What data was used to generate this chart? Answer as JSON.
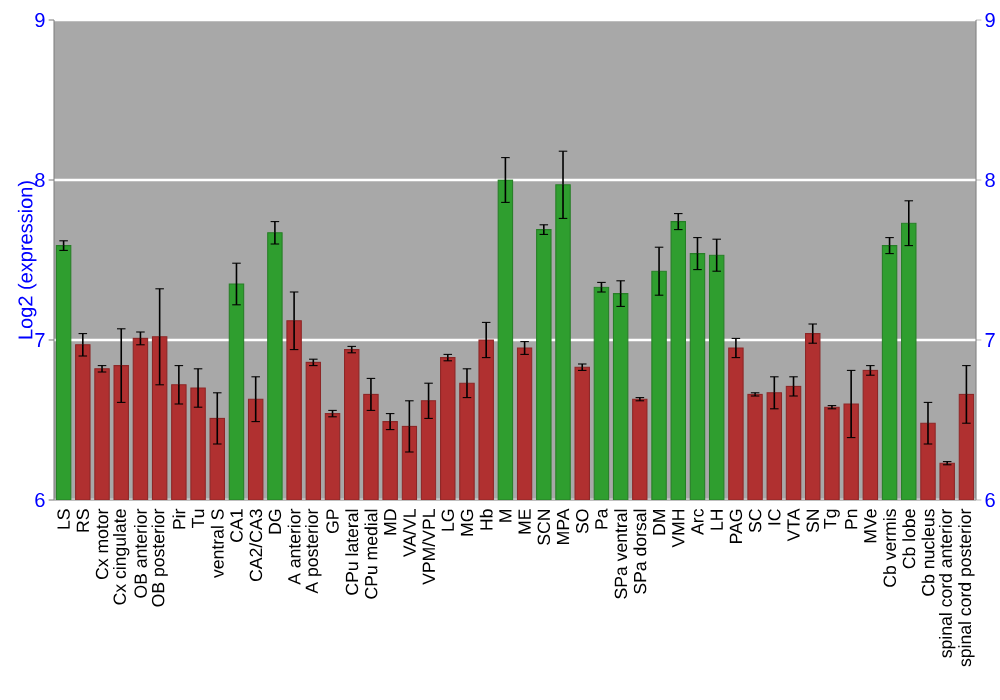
{
  "chart_data": {
    "type": "bar",
    "ylabel": "Log2 (expression)",
    "categories": [
      "LS",
      "RS",
      "Cx motor",
      "Cx cingulate",
      "OB anterior",
      "OB posterior",
      "Pir",
      "Tu",
      "ventral S",
      "CA1",
      "CA2/CA3",
      "DG",
      "A anterior",
      "A posterior",
      "GP",
      "CPu lateral",
      "CPu medial",
      "MD",
      "VA/VL",
      "VPM/VPL",
      "LG",
      "MG",
      "Hb",
      "M",
      "ME",
      "SCN",
      "MPA",
      "SO",
      "Pa",
      "SPa ventral",
      "SPa dorsal",
      "DM",
      "VMH",
      "Arc",
      "LH",
      "PAG",
      "SC",
      "IC",
      "VTA",
      "SN",
      "Tg",
      "Pn",
      "MVe",
      "Cb vermis",
      "Cb lobe",
      "Cb nucleus",
      "spinal cord anterior",
      "spinal cord posterior"
    ],
    "values": [
      7.59,
      6.97,
      6.82,
      6.84,
      7.01,
      7.02,
      6.72,
      6.7,
      6.51,
      7.35,
      6.63,
      7.67,
      7.12,
      6.86,
      6.54,
      6.94,
      6.66,
      6.49,
      6.46,
      6.62,
      6.89,
      6.73,
      7.0,
      8.0,
      6.95,
      7.69,
      7.97,
      6.83,
      7.33,
      7.29,
      6.63,
      7.43,
      7.74,
      7.54,
      7.53,
      6.95,
      6.66,
      6.67,
      6.71,
      7.04,
      6.58,
      6.6,
      6.81,
      7.59,
      7.73,
      6.48,
      6.23,
      6.66
    ],
    "errors": [
      0.03,
      0.07,
      0.02,
      0.23,
      0.04,
      0.3,
      0.12,
      0.12,
      0.16,
      0.13,
      0.14,
      0.07,
      0.18,
      0.02,
      0.02,
      0.02,
      0.1,
      0.05,
      0.16,
      0.11,
      0.02,
      0.09,
      0.11,
      0.14,
      0.04,
      0.03,
      0.21,
      0.02,
      0.03,
      0.08,
      0.01,
      0.15,
      0.05,
      0.1,
      0.1,
      0.06,
      0.01,
      0.1,
      0.06,
      0.06,
      0.01,
      0.21,
      0.03,
      0.05,
      0.14,
      0.13,
      0.01,
      0.18
    ],
    "colors": [
      "#2f9e2f",
      "#b03030",
      "#b03030",
      "#b03030",
      "#b03030",
      "#b03030",
      "#b03030",
      "#b03030",
      "#b03030",
      "#2f9e2f",
      "#b03030",
      "#2f9e2f",
      "#b03030",
      "#b03030",
      "#b03030",
      "#b03030",
      "#b03030",
      "#b03030",
      "#b03030",
      "#b03030",
      "#b03030",
      "#b03030",
      "#b03030",
      "#2f9e2f",
      "#b03030",
      "#2f9e2f",
      "#2f9e2f",
      "#b03030",
      "#2f9e2f",
      "#2f9e2f",
      "#b03030",
      "#2f9e2f",
      "#2f9e2f",
      "#2f9e2f",
      "#2f9e2f",
      "#b03030",
      "#b03030",
      "#b03030",
      "#b03030",
      "#b03030",
      "#b03030",
      "#b03030",
      "#b03030",
      "#2f9e2f",
      "#2f9e2f",
      "#b03030",
      "#b03030",
      "#b03030"
    ],
    "ylim": [
      6,
      9
    ],
    "yticks": [
      6,
      7,
      8,
      9
    ],
    "y2lim": [
      6,
      9
    ],
    "y2ticks": [
      6,
      7,
      8,
      9
    ],
    "grid": "y"
  }
}
